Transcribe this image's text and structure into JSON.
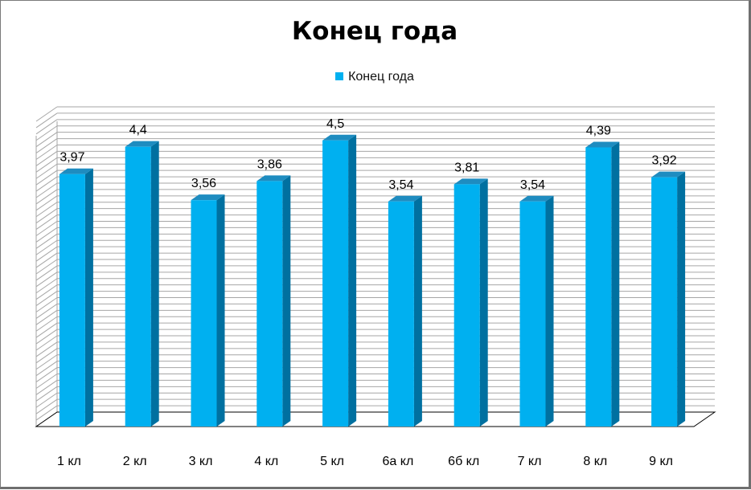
{
  "chart_data": {
    "type": "bar",
    "title": "Конец года",
    "categories": [
      "1 кл",
      "2 кл",
      "3 кл",
      "4 кл",
      "5 кл",
      "6а кл",
      "6б кл",
      "7 кл",
      "8 кл",
      "9 кл"
    ],
    "series": [
      {
        "name": "Конец года",
        "values": [
          3.97,
          4.4,
          3.56,
          3.86,
          4.5,
          3.54,
          3.81,
          3.54,
          4.39,
          3.92
        ],
        "labels": [
          "3,97",
          "4,4",
          "3,56",
          "3,86",
          "4,5",
          "3,54",
          "3,81",
          "3,54",
          "4,39",
          "3,92"
        ]
      }
    ],
    "ylim": [
      0,
      4.8
    ],
    "grid": true,
    "legend_position": "top",
    "style": "3d-column",
    "colors": {
      "bar_front": "#00b0f0",
      "bar_side": "#0070a0",
      "bar_top": "#1e8cc0",
      "grid": "#a6a6a6"
    }
  }
}
